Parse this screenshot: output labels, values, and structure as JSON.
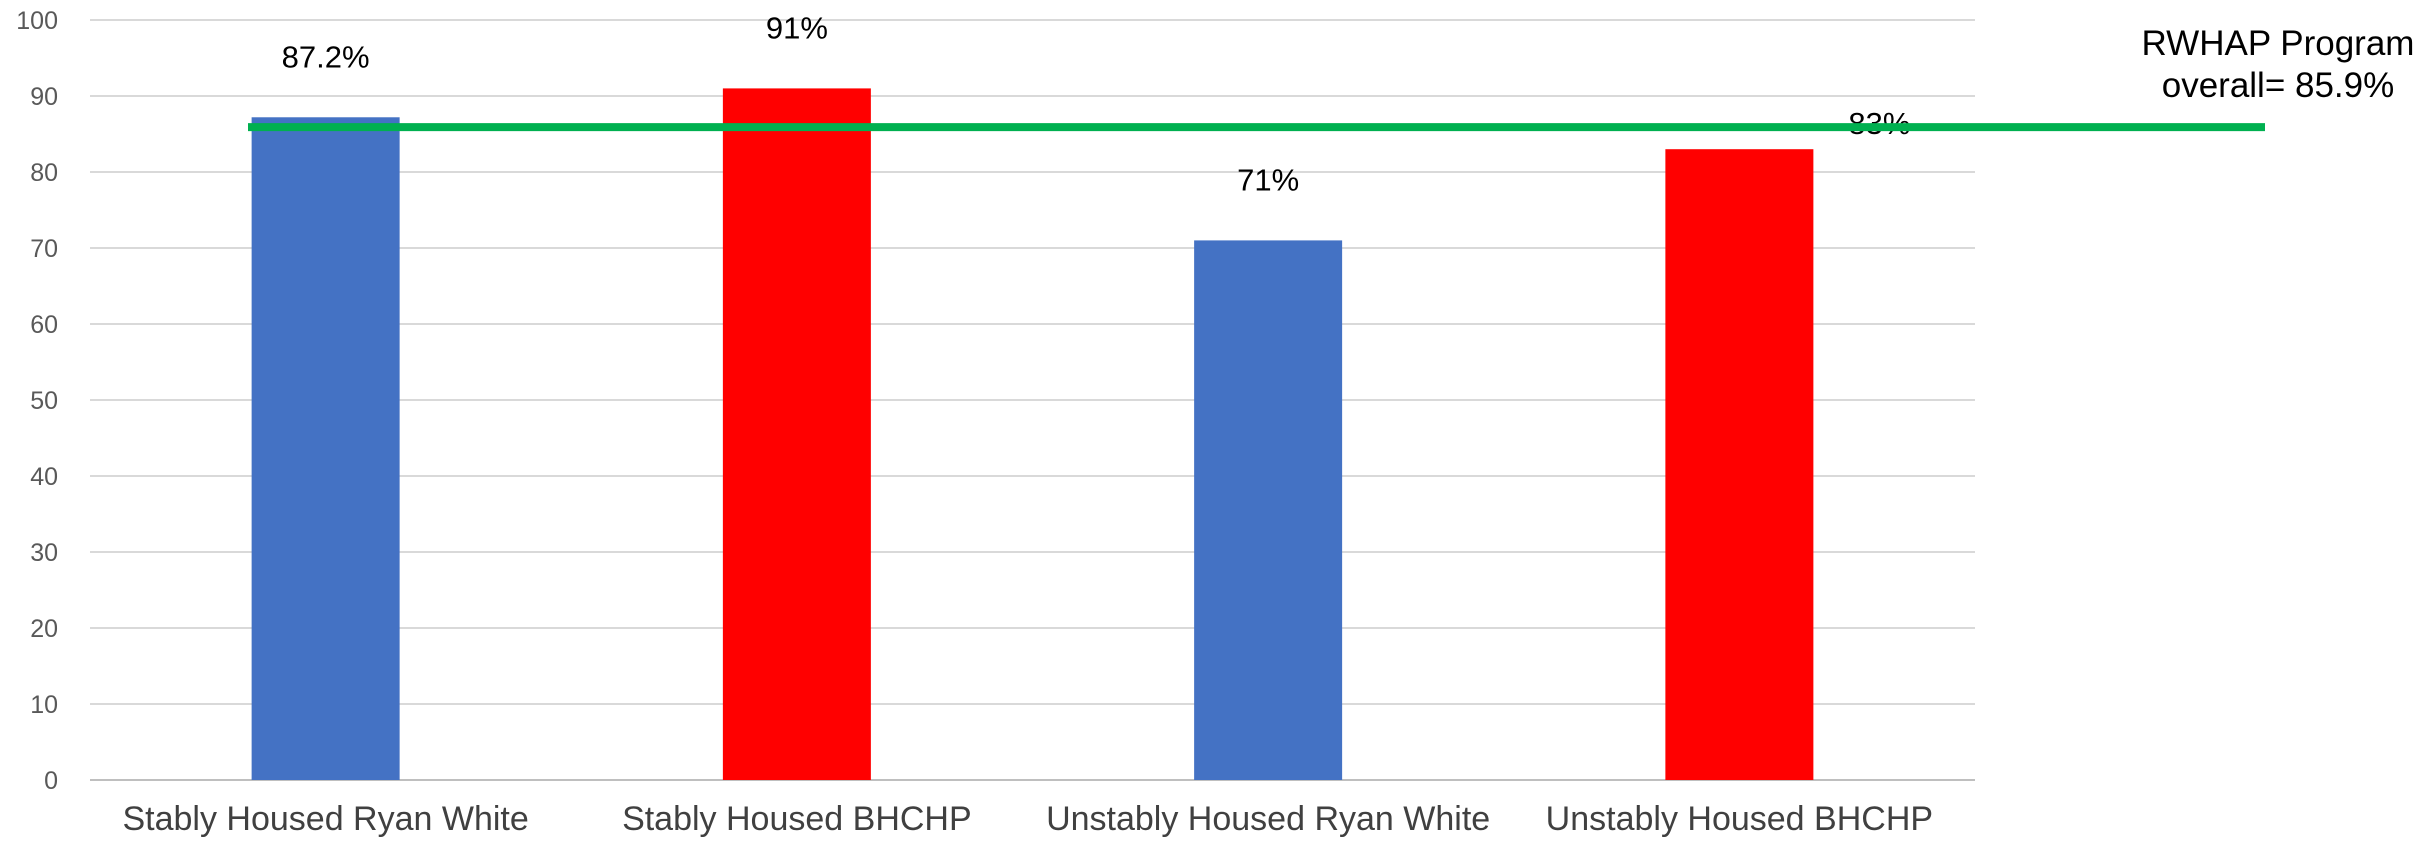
{
  "chart_data": {
    "type": "bar",
    "categories": [
      "Stably Housed Ryan White",
      "Stably Housed BHCHP",
      "Unstably Housed Ryan White",
      "Unstably Housed BHCHP"
    ],
    "values": [
      87.2,
      91,
      71,
      83
    ],
    "data_labels": [
      "87.2%",
      "91%",
      "71%",
      "83%"
    ],
    "bar_colors": [
      "#4472C4",
      "#FF0000",
      "#4472C4",
      "#FF0000"
    ],
    "ylim": [
      0,
      100
    ],
    "y_ticks": [
      0,
      10,
      20,
      30,
      40,
      50,
      60,
      70,
      80,
      90,
      100
    ],
    "grid": true,
    "legend": "none",
    "reference_line": {
      "value": 85.9,
      "color": "#00B050",
      "label_lines": [
        "RWHAP Program",
        "overall= 85.9%"
      ]
    }
  }
}
